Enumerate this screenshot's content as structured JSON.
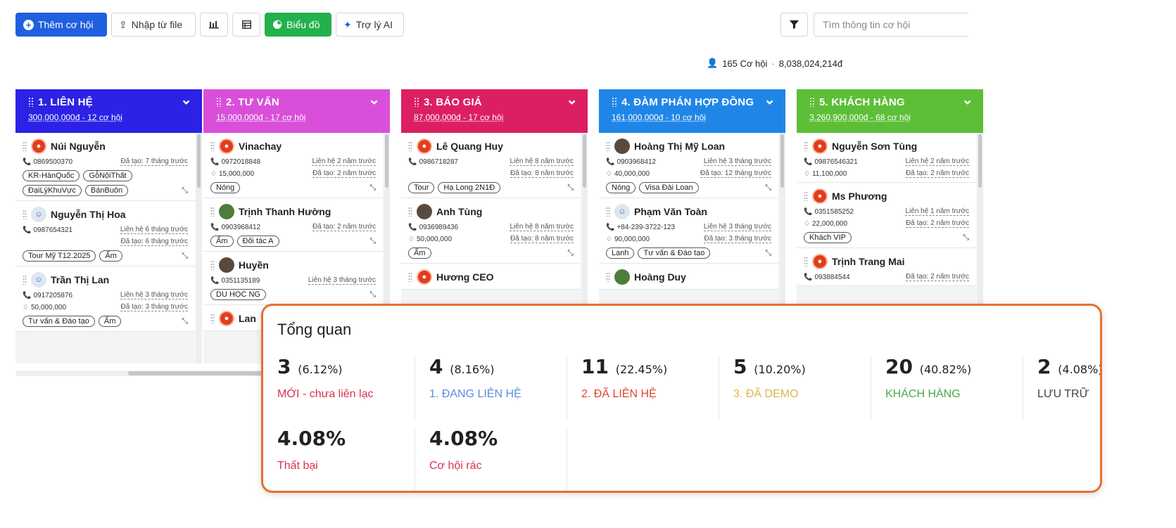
{
  "toolbar": {
    "add_label": "Thêm cơ hội",
    "import_label": "Nhập từ file",
    "chart_label": "Biểu đồ",
    "ai_label": "Trợ lý AI"
  },
  "search": {
    "placeholder": "Tìm thông tin cơ hội"
  },
  "summary": {
    "count_text": "165 Cơ hội",
    "separator": "·",
    "total": "8,038,024,214đ"
  },
  "columns": [
    {
      "title": "1. LIÊN HỆ",
      "subtitle": "300,000,000đ - 12 cơ hội",
      "color": "#2b22e6",
      "cards": [
        {
          "name": "Núi Nguyễn",
          "avatar": "logo",
          "phone": "0869500370",
          "right1": "Đã tạo: 7 tháng trước",
          "tags": [
            "KR-HànQuốc",
            "GỗNộiThất",
            "ĐạiLýKhuVực",
            "BánBuôn"
          ]
        },
        {
          "name": "Nguyễn Thị Hoa",
          "avatar": "kid",
          "phone": "0987654321",
          "right1": "Liên hệ 6 tháng trước",
          "right2": "Đã tạo: 6 tháng trước",
          "tags": [
            "Tour Mỹ T12.2025",
            "Ấm"
          ]
        },
        {
          "name": "Trần Thị Lan",
          "avatar": "kid",
          "phone": "0917205876",
          "right1": "Liên hệ 3 tháng trước",
          "value": "50,000,000",
          "right2": "Đã tạo: 3 tháng trước",
          "tags": [
            "Tư vấn & Đào tạo",
            "Ấm"
          ]
        }
      ]
    },
    {
      "title": "2. TƯ VẤN",
      "subtitle": "15,000,000đ - 17 cơ hội",
      "color": "#d94fd9",
      "cards": [
        {
          "name": "Vinachay",
          "avatar": "logo",
          "phone": "0972018848",
          "right1": "Liên hệ 2 năm trước",
          "value": "15,000,000",
          "right2": "Đã tạo: 2 năm trước",
          "tags": [
            "Nóng"
          ]
        },
        {
          "name": "Trịnh Thanh Hường",
          "avatar": "green",
          "phone": "0903968412",
          "right1": "Đã tạo: 2 năm trước",
          "tags": [
            "Ấm",
            "Đối tác A"
          ]
        },
        {
          "name": "Huyền",
          "avatar": "person",
          "phone": "0351135189",
          "right1": "Liên hệ 3 tháng trước",
          "tags": [
            "DU HỌC NG"
          ]
        },
        {
          "name": "Lan",
          "avatar": "logo"
        }
      ]
    },
    {
      "title": "3. BÁO GIÁ",
      "subtitle": "87,000,000đ - 17 cơ hội",
      "color": "#dc1f63",
      "cards": [
        {
          "name": "Lê Quang Huy",
          "avatar": "logo",
          "phone": "0986718287",
          "right1": "Liên hệ 8 năm trước",
          "right2": "Đã tạo: 8 năm trước",
          "tags": [
            "Tour",
            "Hạ Long 2N1Đ"
          ]
        },
        {
          "name": "Anh Tùng",
          "avatar": "person",
          "phone": "0936989436",
          "right1": "Liên hệ 8 năm trước",
          "value": "50,000,000",
          "right2": "Đã tạo: 8 năm trước",
          "tags": [
            "Ấm"
          ]
        },
        {
          "name": "Hương CEO",
          "avatar": "logo"
        }
      ]
    },
    {
      "title": "4. ĐÀM PHÁN HỢP ĐỒNG",
      "subtitle": "161,000,000đ - 10 cơ hội",
      "color": "#1f86e8",
      "cards": [
        {
          "name": "Hoàng Thị Mỹ Loan",
          "avatar": "person",
          "phone": "0903968412",
          "right1": "Liên hệ 3 tháng trước",
          "value": "40,000,000",
          "right2": "Đã tạo: 12 tháng trước",
          "tags": [
            "Nóng",
            "Visa Đài Loan"
          ]
        },
        {
          "name": "Phạm Văn Toàn",
          "avatar": "kid",
          "phone": "+84-239-3722-123",
          "right1": "Liên hệ 3 tháng trước",
          "value": "90,000,000",
          "right2": "Đã tạo: 3 tháng trước",
          "tags": [
            "Lạnh",
            "Tư vấn & Đào tạo"
          ]
        },
        {
          "name": "Hoàng Duy",
          "avatar": "green"
        }
      ]
    },
    {
      "title": "5. KHÁCH HÀNG",
      "subtitle": "3,260,900,000đ - 68 cơ hội",
      "color": "#5cbf37",
      "cards": [
        {
          "name": "Nguyễn Sơn Tùng",
          "avatar": "logo",
          "phone": "09876546321",
          "right1": "Liên hệ 2 năm trước",
          "value": "11,100,000",
          "right2": "Đã tạo: 2 năm trước"
        },
        {
          "name": "Ms Phương",
          "avatar": "logo",
          "phone": "0351585252",
          "right1": "Liên hệ 1 năm trước",
          "value": "22,000,000",
          "right2": "Đã tạo: 2 năm trước",
          "tags": [
            "Khách VIP"
          ]
        },
        {
          "name": "Trịnh Trang Mai",
          "avatar": "logo",
          "phone": "093884544",
          "right1": "Đã tạo: 2 năm trước"
        }
      ]
    }
  ],
  "overview": {
    "title": "Tổng quan",
    "stats": [
      {
        "value": "3",
        "pct": "(6.12%)",
        "label": "MỚI - chưa liên lạc",
        "color": "#d8334f"
      },
      {
        "value": "4",
        "pct": "(8.16%)",
        "label": "1. ĐANG LIÊN HỆ",
        "color": "#5b8de0"
      },
      {
        "value": "11",
        "pct": "(22.45%)",
        "label": "2. ĐÃ LIÊN HỆ",
        "color": "#e0452e"
      },
      {
        "value": "5",
        "pct": "(10.20%)",
        "label": "3. ĐÃ DEMO",
        "color": "#d9b84a"
      },
      {
        "value": "20",
        "pct": "(40.82%)",
        "label": "KHÁCH HÀNG",
        "color": "#4aa84a"
      },
      {
        "value": "2",
        "pct": "(4.08%)",
        "label": "LƯU TRỮ",
        "color": "#444444"
      },
      {
        "value": "4.08%",
        "pct": "",
        "label": "Thất bại",
        "color": "#d8334f"
      },
      {
        "value": "4.08%",
        "pct": "",
        "label": "Cơ hội rác",
        "color": "#d8334f"
      }
    ]
  }
}
